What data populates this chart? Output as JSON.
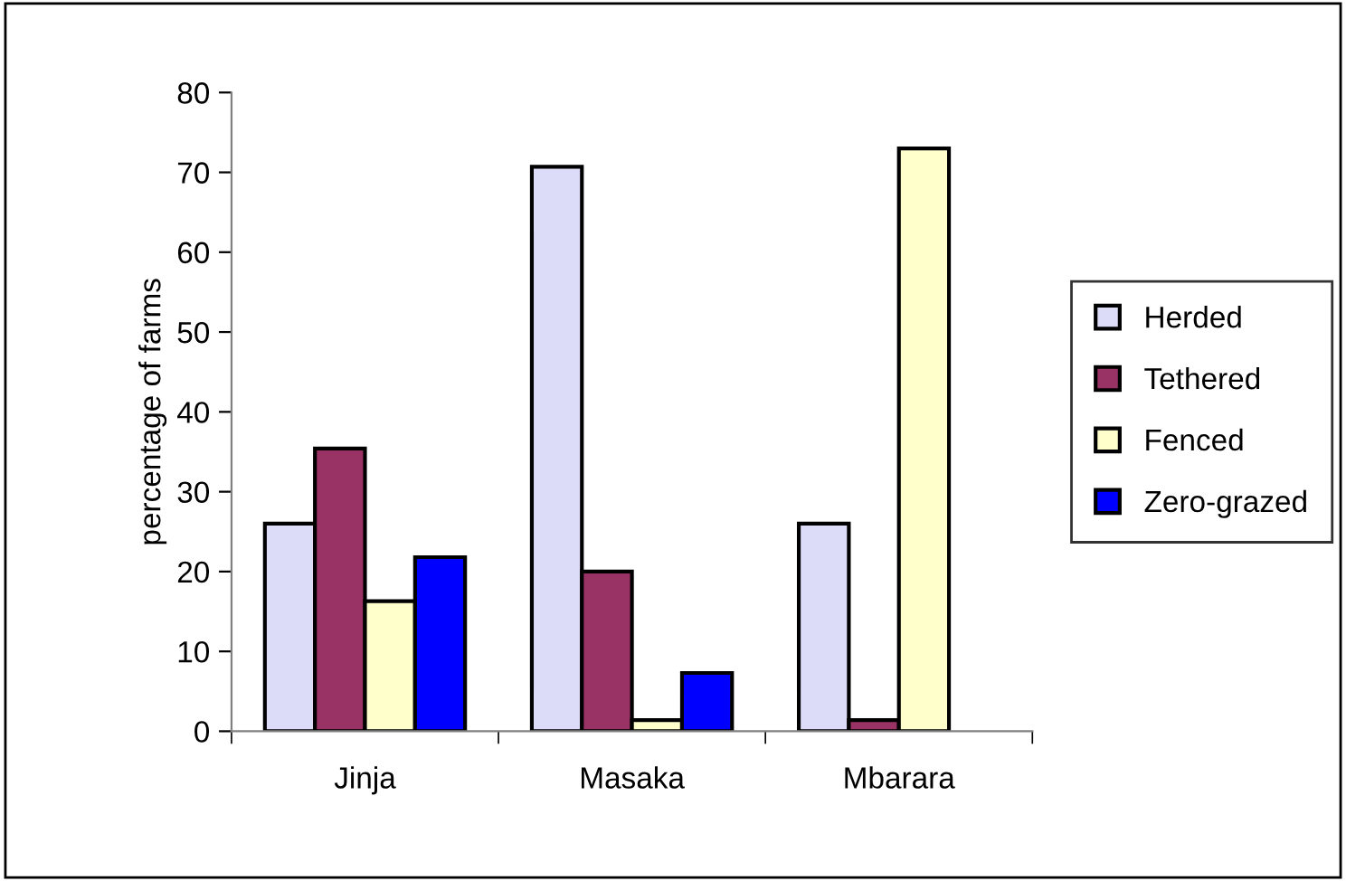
{
  "chart_data": {
    "type": "bar",
    "ylabel": "percentage of farms",
    "categories": [
      "Jinja",
      "Masaka",
      "Mbarara"
    ],
    "series": [
      {
        "name": "Herded",
        "color": "#dcdcf8",
        "values": [
          26,
          70.7,
          26
        ]
      },
      {
        "name": "Tethered",
        "color": "#993366",
        "values": [
          35.4,
          20,
          1.4
        ]
      },
      {
        "name": "Fenced",
        "color": "#ffffcc",
        "values": [
          16.3,
          1.4,
          73
        ]
      },
      {
        "name": "Zero-grazed",
        "color": "#0000ff",
        "values": [
          21.8,
          7.3,
          null
        ]
      }
    ],
    "ylim": [
      0,
      80
    ],
    "yticks": [
      0,
      10,
      20,
      30,
      40,
      50,
      60,
      70,
      80
    ],
    "grid": false,
    "legend": "right"
  }
}
